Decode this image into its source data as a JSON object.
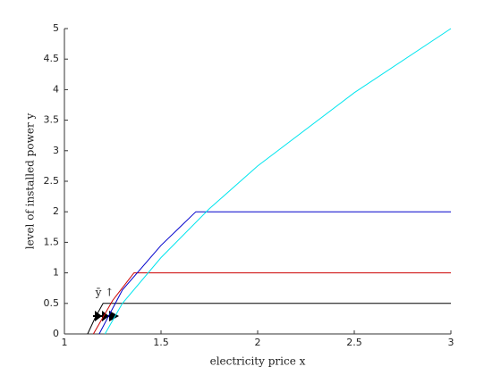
{
  "chart_data": {
    "type": "line",
    "xlabel": "electricity price x",
    "ylabel": "level of installed power y",
    "annotation": "ȳ ↑",
    "xlim": [
      1,
      3
    ],
    "xticks": [
      1,
      1.5,
      2,
      2.5,
      3
    ],
    "ylim": [
      0,
      5
    ],
    "yticks": [
      0,
      0.5,
      1,
      1.5,
      2,
      2.5,
      3,
      3.5,
      4,
      4.5,
      5
    ],
    "series": [
      {
        "color": "#000000",
        "x": [
          1.12,
          1.16,
          1.2,
          3
        ],
        "values": [
          0,
          0.27,
          0.5,
          0.5
        ]
      },
      {
        "color": "#cc0000",
        "x": [
          1.15,
          1.25,
          1.36,
          3
        ],
        "values": [
          0,
          0.55,
          1,
          1
        ]
      },
      {
        "color": "#0000cc",
        "x": [
          1.18,
          1.3,
          1.5,
          1.68,
          3
        ],
        "values": [
          0,
          0.72,
          1.45,
          2,
          2
        ]
      },
      {
        "color": "#00e5ee",
        "x": [
          1.21,
          1.3,
          1.5,
          1.75,
          2,
          2.5,
          3
        ],
        "values": [
          0,
          0.5,
          1.25,
          2.05,
          2.75,
          3.95,
          5
        ]
      }
    ]
  }
}
